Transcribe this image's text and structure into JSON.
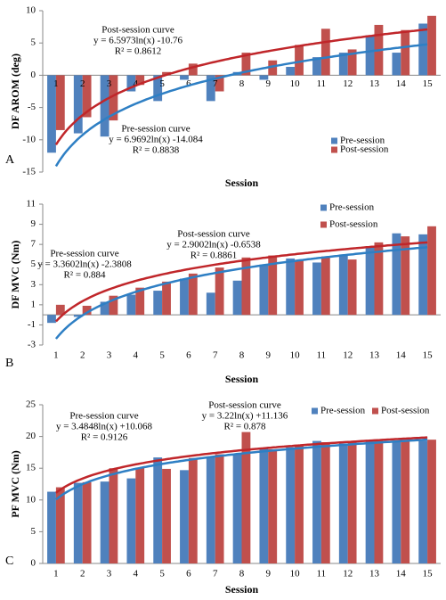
{
  "chart_data": [
    {
      "type": "bar",
      "panel": "A",
      "y_label": "DF AROM (deg)",
      "x_label": "Session",
      "categories": [
        1,
        2,
        3,
        4,
        5,
        6,
        7,
        8,
        9,
        10,
        11,
        12,
        13,
        14,
        15
      ],
      "series": [
        {
          "name": "Pre-session",
          "color": "#4f81bd",
          "values": [
            -12,
            -9,
            -9.5,
            -2.5,
            -4,
            -0.7,
            -4,
            0.5,
            -0.7,
            1.3,
            2.8,
            3.5,
            6.2,
            3.5,
            8
          ]
        },
        {
          "name": "Post-session",
          "color": "#c0504d",
          "values": [
            -8.5,
            -6.5,
            -7,
            -1.5,
            0.5,
            1.8,
            -2.5,
            3.5,
            2.3,
            4.7,
            7.2,
            4,
            7.8,
            7,
            9.2
          ]
        }
      ],
      "trendlines": [
        {
          "label": "Post-session curve",
          "equation": "y = 6.5973ln(x) -10.76",
          "r2": "R² = 0.8612",
          "a": 6.5973,
          "b": -10.76,
          "color": "#c0262a"
        },
        {
          "label": "Pre-session curve",
          "equation": "y = 6.9692ln(x) -14.084",
          "r2": "R² = 0.8838",
          "a": 6.9692,
          "b": -14.084,
          "color": "#2e7fc4"
        }
      ],
      "ylim": [
        -15,
        10
      ],
      "yticks": [
        -15,
        -10,
        -5,
        0,
        5,
        10
      ],
      "legend": "right"
    },
    {
      "type": "bar",
      "panel": "B",
      "y_label": "DF  MVC (Nm)",
      "x_label": "Session",
      "categories": [
        1,
        2,
        3,
        4,
        5,
        6,
        7,
        8,
        9,
        10,
        11,
        12,
        13,
        14,
        15
      ],
      "series": [
        {
          "name": "Pre-session",
          "color": "#4f81bd",
          "values": [
            -0.8,
            -0.2,
            1.3,
            2,
            2.4,
            3.6,
            2.2,
            3.4,
            5,
            5.6,
            5.2,
            6,
            6.7,
            8.1,
            8
          ]
        },
        {
          "name": "Post-session",
          "color": "#c0504d",
          "values": [
            1,
            0.9,
            1.9,
            2.7,
            3.3,
            4.1,
            4.7,
            5.7,
            5.9,
            5.4,
            5.8,
            5.5,
            7.2,
            7.8,
            8.8
          ]
        }
      ],
      "trendlines": [
        {
          "label": "Pre-session curve",
          "equation": "y = 3.3602ln(x) -2.3808",
          "r2": "R² = 0.884",
          "a": 3.3602,
          "b": -2.3808,
          "color": "#2e7fc4"
        },
        {
          "label": "Post-session curve",
          "equation": "y = 2.9002ln(x) -0.6538",
          "r2": "R² = 0.8861",
          "a": 2.9002,
          "b": -0.6538,
          "color": "#c0262a"
        }
      ],
      "ylim": [
        -3,
        11
      ],
      "yticks": [
        -3,
        -1,
        1,
        3,
        5,
        7,
        9,
        11
      ],
      "legend": "top"
    },
    {
      "type": "bar",
      "panel": "C",
      "y_label": "PF  MVC (Nm)",
      "x_label": "Session",
      "categories": [
        1,
        2,
        3,
        4,
        5,
        6,
        7,
        8,
        9,
        10,
        11,
        12,
        13,
        14,
        15
      ],
      "series": [
        {
          "name": "Pre-session",
          "color": "#4f81bd",
          "values": [
            11.3,
            12.7,
            12.9,
            13.4,
            16.7,
            14.7,
            16.8,
            17.2,
            18.1,
            18.3,
            19.3,
            18.9,
            19.3,
            19.3,
            19.3
          ]
        },
        {
          "name": "Post-session",
          "color": "#c0504d",
          "values": [
            12,
            12.8,
            15,
            15.1,
            14.9,
            16.6,
            17.2,
            20.7,
            18,
            18.6,
            19.1,
            19.2,
            19.3,
            19.5,
            19.5
          ]
        }
      ],
      "trendlines": [
        {
          "label": "Pre-session curve",
          "equation": "y = 3.4848ln(x) +10.068",
          "r2": "R² = 0.9126",
          "a": 3.4848,
          "b": 10.068,
          "color": "#2e7fc4"
        },
        {
          "label": "Post-session curve",
          "equation": "y = 3.22ln(x) +11.136",
          "r2": "R² = 0.878",
          "a": 3.22,
          "b": 11.136,
          "color": "#c0262a"
        }
      ],
      "ylim": [
        0,
        25
      ],
      "yticks": [
        0,
        5,
        10,
        15,
        20,
        25
      ],
      "legend": "top-right"
    }
  ]
}
